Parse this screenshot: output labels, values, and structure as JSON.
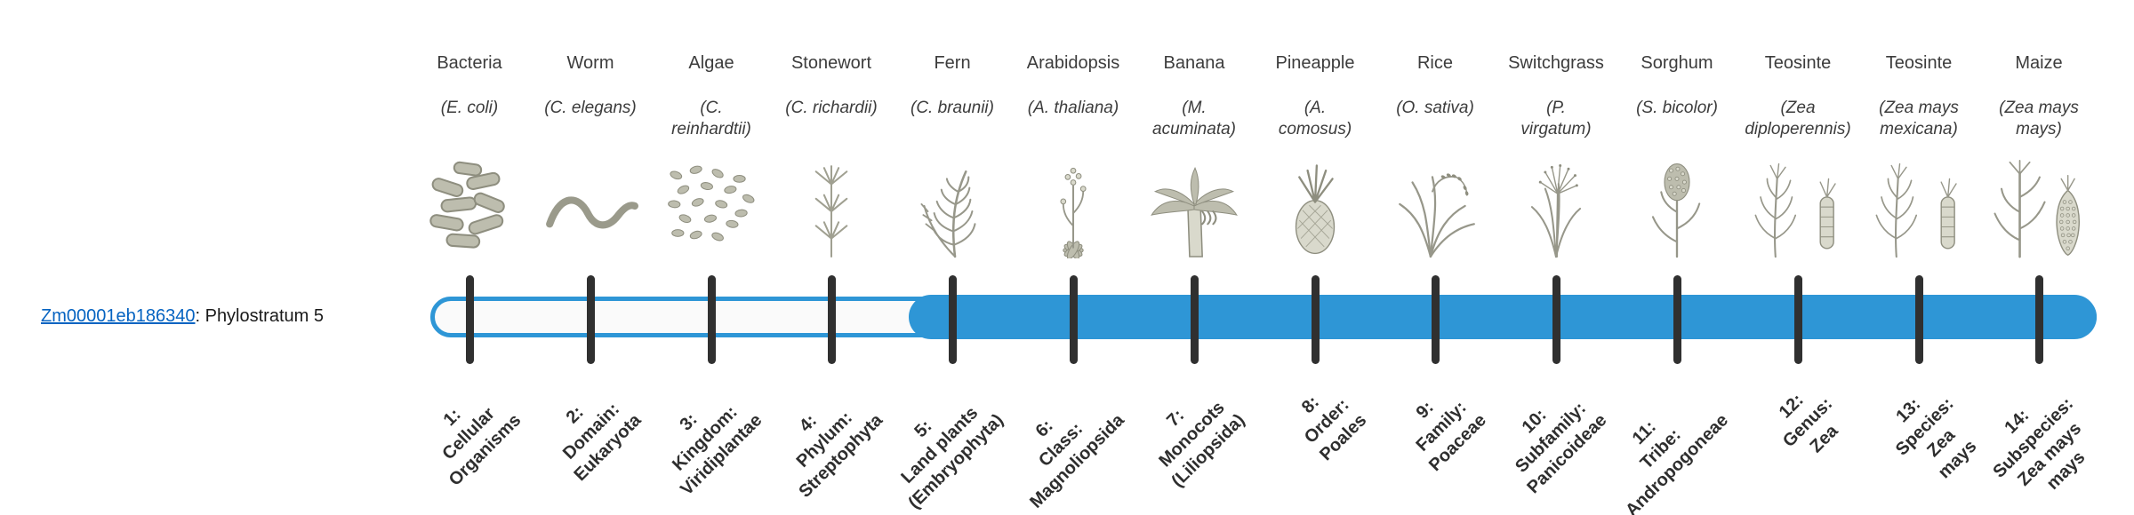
{
  "figure": {
    "type": "phylostratigraphy-timeline"
  },
  "gene_label": {
    "id": "Zm00001eb186340",
    "suffix": ": Phylostratum 5"
  },
  "highlight": {
    "phylostratum": 5
  },
  "colors": {
    "bar_fill": "#2e96d6",
    "bar_track_bg": "#fafafa",
    "tick": "#303030",
    "link": "#0563c1",
    "text": "#3c3c3c"
  },
  "organisms": [
    {
      "name": "Bacteria",
      "sci": "(E. coli)",
      "icon": "bacteria-icon"
    },
    {
      "name": "Worm",
      "sci": "(C. elegans)",
      "icon": "worm-icon"
    },
    {
      "name": "Algae",
      "sci": "(C.\nreinhardtii)",
      "icon": "algae-icon"
    },
    {
      "name": "Stonewort",
      "sci": "(C. richardii)",
      "icon": "stonewort-icon"
    },
    {
      "name": "Fern",
      "sci": "(C. braunii)",
      "icon": "fern-icon"
    },
    {
      "name": "Arabidopsis",
      "sci": "(A. thaliana)",
      "icon": "arabidopsis-icon"
    },
    {
      "name": "Banana",
      "sci": "(M.\nacuminata)",
      "icon": "banana-icon"
    },
    {
      "name": "Pineapple",
      "sci": "(A.\ncomosus)",
      "icon": "pineapple-icon"
    },
    {
      "name": "Rice",
      "sci": "(O. sativa)",
      "icon": "rice-icon"
    },
    {
      "name": "Switchgrass",
      "sci": "(P.\nvirgatum)",
      "icon": "switchgrass-icon"
    },
    {
      "name": "Sorghum",
      "sci": "(S. bicolor)",
      "icon": "sorghum-icon"
    },
    {
      "name": "Teosinte",
      "sci": "(Zea\ndiploperennis)",
      "icon": "teosinte-icon"
    },
    {
      "name": "Teosinte",
      "sci": "(Zea mays\nmexicana)",
      "icon": "teosinte-icon"
    },
    {
      "name": "Maize",
      "sci": "(Zea mays\nmays)",
      "icon": "maize-icon"
    }
  ],
  "phylostrata": [
    {
      "num": 1,
      "label": "1:\nCellular\nOrganisms"
    },
    {
      "num": 2,
      "label": "2:\nDomain:\nEukaryota"
    },
    {
      "num": 3,
      "label": "3:\nKingdom:\nViridiplantae"
    },
    {
      "num": 4,
      "label": "4:\nPhylum:\nStreptophyta"
    },
    {
      "num": 5,
      "label": "5:\nLand plants\n(Embryophyta)"
    },
    {
      "num": 6,
      "label": "6:\nClass:\nMagnoliopsida"
    },
    {
      "num": 7,
      "label": "7:\nMonocots\n(Liliopsida)"
    },
    {
      "num": 8,
      "label": "8:\nOrder:\nPoales"
    },
    {
      "num": 9,
      "label": "9:\nFamily:\nPoaceae"
    },
    {
      "num": 10,
      "label": "10:\nSubfamily:\nPanicoideae"
    },
    {
      "num": 11,
      "label": "11:\nTribe:\nAndropogoneae"
    },
    {
      "num": 12,
      "label": "12:\nGenus:\nZea"
    },
    {
      "num": 13,
      "label": "13:\nSpecies:\nZea\nmays"
    },
    {
      "num": 14,
      "label": "14:\nSubspecies:\nZea mays\nmays"
    }
  ]
}
